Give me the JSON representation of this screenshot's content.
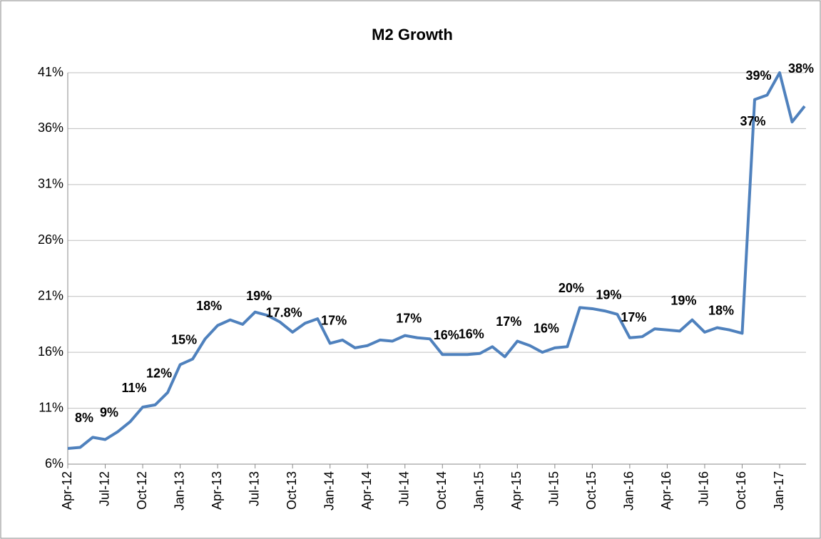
{
  "chart_data": {
    "type": "line",
    "title": "M2 Growth",
    "categories": [
      "Apr-12",
      null,
      null,
      "Jul-12",
      null,
      null,
      "Oct-12",
      null,
      null,
      "Jan-13",
      null,
      null,
      "Apr-13",
      null,
      null,
      "Jul-13",
      null,
      null,
      "Oct-13",
      null,
      null,
      "Jan-14",
      null,
      null,
      "Apr-14",
      null,
      null,
      "Jul-14",
      null,
      null,
      "Oct-14",
      null,
      null,
      "Jan-15",
      null,
      null,
      "Apr-15",
      null,
      null,
      "Jul-15",
      null,
      null,
      "Oct-15",
      null,
      null,
      "Jan-16",
      null,
      null,
      "Apr-16",
      null,
      null,
      "Jul-16",
      null,
      null,
      "Oct-16",
      null,
      null,
      "Jan-17",
      null,
      null
    ],
    "series": [
      {
        "name": "M2 Growth",
        "color": "#4f81bd",
        "values": [
          7.4,
          7.5,
          8.4,
          8.2,
          8.9,
          9.8,
          11.1,
          11.3,
          12.4,
          14.9,
          15.4,
          17.2,
          18.4,
          18.9,
          18.5,
          19.6,
          19.3,
          18.7,
          17.8,
          18.6,
          19.0,
          16.8,
          17.1,
          16.4,
          16.6,
          17.1,
          17.0,
          17.5,
          17.3,
          17.2,
          15.8,
          15.8,
          15.8,
          15.9,
          16.5,
          15.6,
          17.0,
          16.6,
          16.0,
          16.4,
          16.5,
          20.0,
          19.9,
          19.7,
          19.4,
          17.3,
          17.4,
          18.1,
          18.0,
          17.9,
          18.9,
          17.8,
          18.2,
          18.0,
          17.7,
          38.6,
          39.0,
          41.0,
          36.6,
          38.0
        ],
        "value_labels": [
          null,
          null,
          "8%",
          null,
          "9%",
          null,
          "11%",
          null,
          "12%",
          null,
          "15%",
          null,
          "18%",
          null,
          null,
          null,
          "19%",
          null,
          "17.8%",
          null,
          null,
          null,
          "17%",
          null,
          null,
          null,
          null,
          null,
          "17%",
          null,
          null,
          "16%",
          null,
          "16%",
          null,
          null,
          "17%",
          null,
          null,
          "16%",
          null,
          "20%",
          null,
          null,
          "19%",
          null,
          "17%",
          null,
          null,
          null,
          "19%",
          null,
          null,
          "18%",
          null,
          null,
          "39%",
          null,
          "37%",
          "38%"
        ]
      }
    ],
    "ylim": [
      6,
      41
    ],
    "yticks": [
      {
        "value": 6,
        "label": "6%"
      },
      {
        "value": 11,
        "label": "11%"
      },
      {
        "value": 16,
        "label": "16%"
      },
      {
        "value": 21,
        "label": "21%"
      },
      {
        "value": 26,
        "label": "26%"
      },
      {
        "value": 31,
        "label": "31%"
      },
      {
        "value": 36,
        "label": "36%"
      },
      {
        "value": 41,
        "label": "41%"
      }
    ],
    "grid": true
  }
}
